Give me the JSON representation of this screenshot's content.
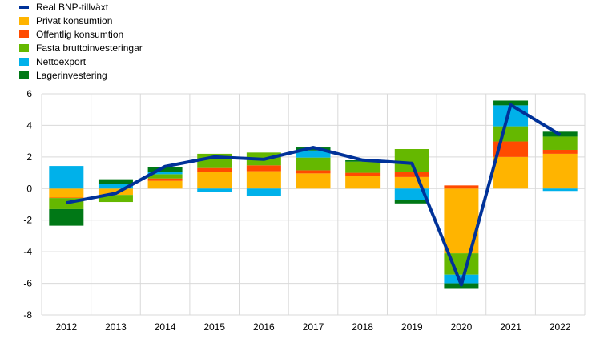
{
  "chart_data": {
    "type": "bar",
    "stacked": true,
    "categories": [
      "2012",
      "2013",
      "2014",
      "2015",
      "2016",
      "2017",
      "2018",
      "2019",
      "2020",
      "2021",
      "2022"
    ],
    "ylim": [
      -8,
      6
    ],
    "yticks": [
      -8,
      -6,
      -4,
      -2,
      0,
      2,
      4,
      6
    ],
    "grid": true,
    "legend_position": "top-left",
    "line": {
      "name": "Real BNP-tillväxt",
      "color": "#003299",
      "values": [
        -0.9,
        -0.3,
        1.4,
        2.0,
        1.85,
        2.6,
        1.8,
        1.6,
        -6.1,
        5.3,
        3.4
      ]
    },
    "series": [
      {
        "name": "Privat konsumtion",
        "color": "#FFB400",
        "values": [
          -0.57,
          -0.4,
          0.49,
          1.05,
          1.1,
          0.96,
          0.8,
          0.73,
          -4.1,
          2.0,
          2.2
        ]
      },
      {
        "name": "Offentlig konsumtion",
        "color": "#FF4B00",
        "values": [
          -0.03,
          0.0,
          0.15,
          0.25,
          0.37,
          0.2,
          0.2,
          0.33,
          0.2,
          0.98,
          0.25
        ]
      },
      {
        "name": "Fasta bruttoinvesteringar",
        "color": "#65B800",
        "values": [
          -0.7,
          -0.45,
          0.27,
          0.9,
          0.81,
          0.8,
          0.7,
          1.44,
          -1.35,
          0.96,
          0.84
        ]
      },
      {
        "name": "Nettoexport",
        "color": "#00B1EA",
        "values": [
          1.43,
          0.3,
          0.12,
          -0.2,
          -0.45,
          0.45,
          0.0,
          -0.74,
          -0.55,
          1.33,
          -0.15
        ]
      },
      {
        "name": "Lagerinvestering",
        "color": "#007816",
        "values": [
          -1.05,
          0.29,
          0.34,
          0.0,
          0.0,
          0.19,
          0.09,
          -0.2,
          -0.3,
          0.3,
          0.31
        ]
      }
    ]
  }
}
